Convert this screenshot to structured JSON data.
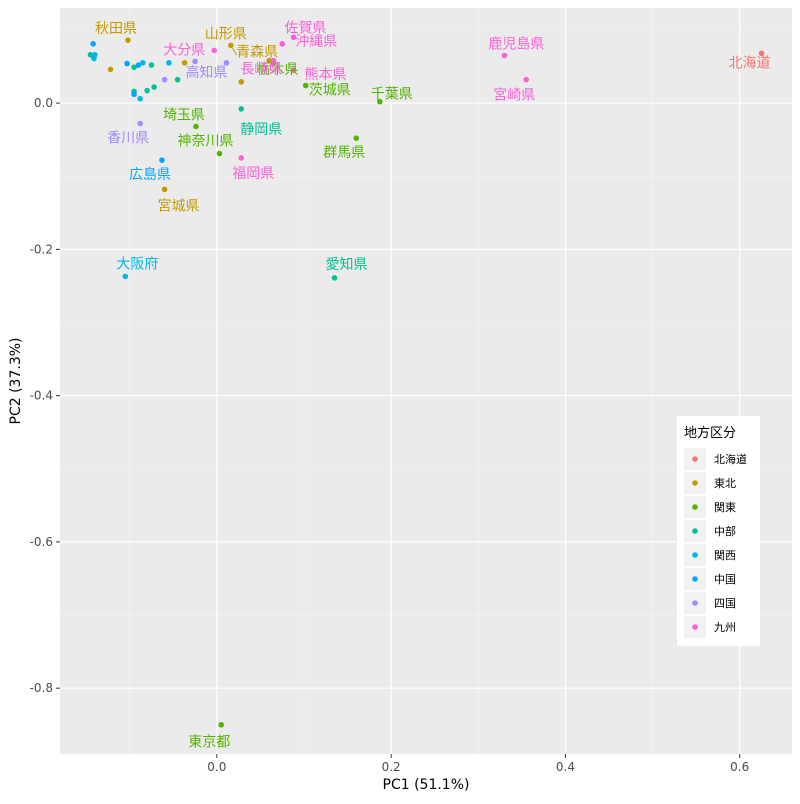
{
  "chart_data": {
    "type": "scatter",
    "title": "",
    "xlabel": "PC1 (51.1%)",
    "ylabel": "PC2 (37.3%)",
    "xlim": [
      -0.18,
      0.66
    ],
    "ylim": [
      -0.89,
      0.13
    ],
    "x_ticks": [
      {
        "value": 0.0,
        "label": "0.0"
      },
      {
        "value": 0.2,
        "label": "0.2"
      },
      {
        "value": 0.4,
        "label": "0.4"
      },
      {
        "value": 0.6,
        "label": "0.6"
      }
    ],
    "y_ticks": [
      {
        "value": 0.0,
        "label": "0.0"
      },
      {
        "value": -0.2,
        "label": "-0.2"
      },
      {
        "value": -0.4,
        "label": "-0.4"
      },
      {
        "value": -0.6,
        "label": "-0.6"
      },
      {
        "value": -0.8,
        "label": "-0.8"
      }
    ],
    "grid": true,
    "legend": {
      "title": "地方区分",
      "position": "right",
      "entries": [
        {
          "name": "北海道",
          "color": "#F8766D"
        },
        {
          "name": "東北",
          "color": "#C49A00"
        },
        {
          "name": "関東",
          "color": "#53B400"
        },
        {
          "name": "中部",
          "color": "#00C094"
        },
        {
          "name": "関西",
          "color": "#00B6EB"
        },
        {
          "name": "中国",
          "color": "#06A4FF"
        },
        {
          "name": "四国",
          "color": "#A58AFF"
        },
        {
          "name": "九州",
          "color": "#FB61D7"
        }
      ]
    },
    "series": [
      {
        "name": "北海道",
        "color": "#F8766D",
        "points": [
          {
            "x": 0.625,
            "y": 0.068,
            "label": "北海道"
          }
        ]
      },
      {
        "name": "東北",
        "color": "#C49A00",
        "points": [
          {
            "x": -0.102,
            "y": 0.086,
            "label": "秋田県"
          },
          {
            "x": 0.016,
            "y": 0.079,
            "label": "山形県"
          },
          {
            "x": 0.06,
            "y": 0.058,
            "label": "青森県"
          },
          {
            "x": -0.06,
            "y": -0.118,
            "label": "宮城県"
          },
          {
            "x": -0.122,
            "y": 0.046
          },
          {
            "x": -0.037,
            "y": 0.055
          },
          {
            "x": 0.028,
            "y": 0.029
          }
        ]
      },
      {
        "name": "関東",
        "color": "#53B400",
        "points": [
          {
            "x": 0.187,
            "y": 0.002,
            "label": "千葉県"
          },
          {
            "x": 0.102,
            "y": 0.024,
            "label": "茨城県"
          },
          {
            "x": 0.16,
            "y": -0.048,
            "label": "群馬県"
          },
          {
            "x": -0.024,
            "y": -0.032,
            "label": "埼玉県"
          },
          {
            "x": 0.003,
            "y": -0.069,
            "label": "神奈川県"
          },
          {
            "x": 0.005,
            "y": -0.85,
            "label": "東京都"
          },
          {
            "x": 0.065,
            "y": 0.055,
            "label": "栃木県"
          }
        ]
      },
      {
        "name": "中部",
        "color": "#00C094",
        "points": [
          {
            "x": 0.028,
            "y": -0.008,
            "label": "静岡県"
          },
          {
            "x": 0.135,
            "y": -0.239,
            "label": "愛知県"
          },
          {
            "x": -0.145,
            "y": 0.066
          },
          {
            "x": -0.095,
            "y": 0.049
          },
          {
            "x": -0.075,
            "y": 0.052
          },
          {
            "x": -0.045,
            "y": 0.032
          },
          {
            "x": -0.095,
            "y": 0.016
          },
          {
            "x": -0.08,
            "y": 0.017
          },
          {
            "x": -0.072,
            "y": 0.022
          }
        ]
      },
      {
        "name": "関西",
        "color": "#00B6EB",
        "points": [
          {
            "x": -0.105,
            "y": -0.237,
            "label": "大阪府"
          },
          {
            "x": -0.141,
            "y": 0.061
          },
          {
            "x": -0.14,
            "y": 0.066
          },
          {
            "x": -0.088,
            "y": 0.006
          },
          {
            "x": -0.085,
            "y": 0.055
          },
          {
            "x": -0.055,
            "y": 0.055
          }
        ]
      },
      {
        "name": "中国",
        "color": "#06A4FF",
        "points": [
          {
            "x": -0.063,
            "y": -0.078,
            "label": "広島県"
          },
          {
            "x": -0.142,
            "y": 0.081
          },
          {
            "x": -0.103,
            "y": 0.054
          },
          {
            "x": -0.095,
            "y": 0.012
          },
          {
            "x": -0.09,
            "y": 0.052
          }
        ]
      },
      {
        "name": "四国",
        "color": "#A58AFF",
        "points": [
          {
            "x": -0.088,
            "y": -0.028,
            "label": "香川県"
          },
          {
            "x": 0.011,
            "y": 0.055,
            "label": "高知県"
          },
          {
            "x": -0.06,
            "y": 0.032
          },
          {
            "x": -0.025,
            "y": 0.057
          }
        ]
      },
      {
        "name": "九州",
        "color": "#FB61D7",
        "points": [
          {
            "x": 0.088,
            "y": 0.09,
            "label": "佐賀県"
          },
          {
            "x": -0.003,
            "y": 0.072,
            "label": "大分県"
          },
          {
            "x": 0.075,
            "y": 0.081,
            "label": "沖縄県"
          },
          {
            "x": 0.088,
            "y": 0.045,
            "label": "熊本県"
          },
          {
            "x": 0.065,
            "y": 0.058,
            "label": "長崎県"
          },
          {
            "x": 0.028,
            "y": -0.075,
            "label": "福岡県"
          },
          {
            "x": 0.33,
            "y": 0.065,
            "label": "鹿児島県"
          },
          {
            "x": 0.355,
            "y": 0.032,
            "label": "宮崎県"
          }
        ]
      }
    ]
  }
}
